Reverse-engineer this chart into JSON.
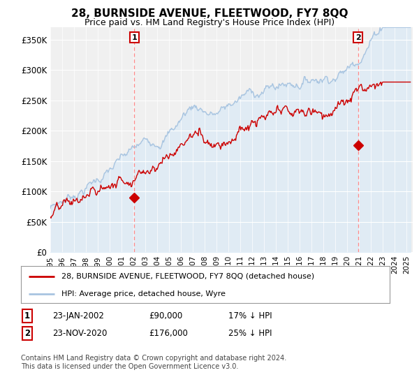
{
  "title": "28, BURNSIDE AVENUE, FLEETWOOD, FY7 8QQ",
  "subtitle": "Price paid vs. HM Land Registry's House Price Index (HPI)",
  "ylabel_ticks": [
    "£0",
    "£50K",
    "£100K",
    "£150K",
    "£200K",
    "£250K",
    "£300K",
    "£350K"
  ],
  "ylim": [
    0,
    370000
  ],
  "xlim_start": 1995.0,
  "xlim_end": 2025.5,
  "sale1_date": 2002.07,
  "sale1_price": 90000,
  "sale2_date": 2020.9,
  "sale2_price": 176000,
  "hpi_color": "#a8c4e0",
  "hpi_fill_color": "#daeaf7",
  "price_color": "#cc0000",
  "vline_color": "#ff9999",
  "marker_color": "#cc0000",
  "legend_label1": "28, BURNSIDE AVENUE, FLEETWOOD, FY7 8QQ (detached house)",
  "legend_label2": "HPI: Average price, detached house, Wyre",
  "table_row1": [
    "1",
    "23-JAN-2002",
    "£90,000",
    "17% ↓ HPI"
  ],
  "table_row2": [
    "2",
    "23-NOV-2020",
    "£176,000",
    "25% ↓ HPI"
  ],
  "footnote": "Contains HM Land Registry data © Crown copyright and database right 2024.\nThis data is licensed under the Open Government Licence v3.0.",
  "background_color": "#ffffff",
  "plot_bg_color": "#f0f0f0"
}
